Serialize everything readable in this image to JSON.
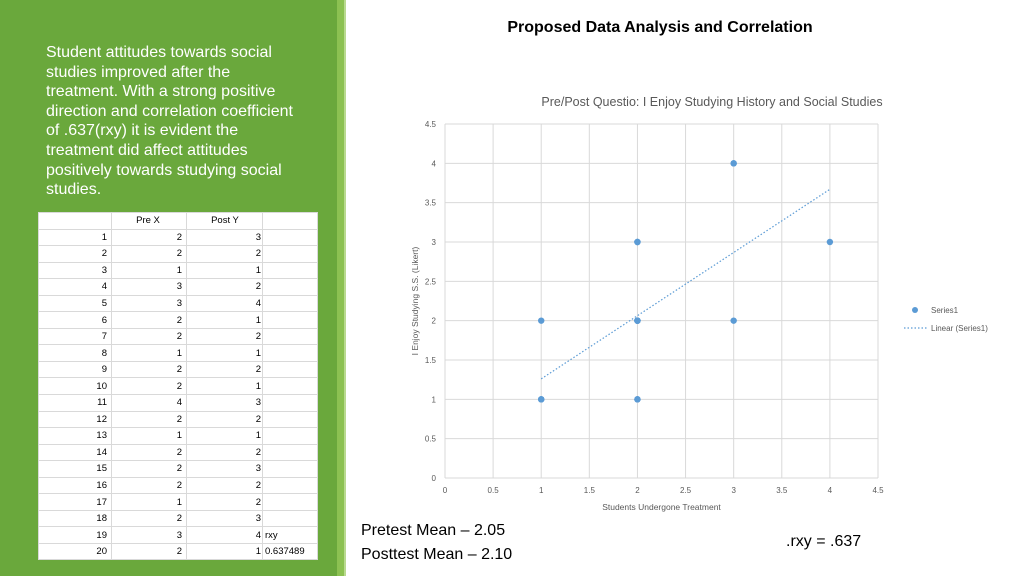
{
  "page_title": "Proposed Data Analysis and Correlation",
  "summary": "Student attitudes towards social studies improved after the treatment. With a strong positive direction and correlation coefficient of .637(rxy) it is evident the treatment did affect attitudes positively towards studying social studies.",
  "table": {
    "headers": [
      "",
      "Pre X",
      "Post Y",
      ""
    ],
    "rows": [
      [
        "1",
        "2",
        "3",
        ""
      ],
      [
        "2",
        "2",
        "2",
        ""
      ],
      [
        "3",
        "1",
        "1",
        ""
      ],
      [
        "4",
        "3",
        "2",
        ""
      ],
      [
        "5",
        "3",
        "4",
        ""
      ],
      [
        "6",
        "2",
        "1",
        ""
      ],
      [
        "7",
        "2",
        "2",
        ""
      ],
      [
        "8",
        "1",
        "1",
        ""
      ],
      [
        "9",
        "2",
        "2",
        ""
      ],
      [
        "10",
        "2",
        "1",
        ""
      ],
      [
        "11",
        "4",
        "3",
        ""
      ],
      [
        "12",
        "2",
        "2",
        ""
      ],
      [
        "13",
        "1",
        "1",
        ""
      ],
      [
        "14",
        "2",
        "2",
        ""
      ],
      [
        "15",
        "2",
        "3",
        ""
      ],
      [
        "16",
        "2",
        "2",
        ""
      ],
      [
        "17",
        "1",
        "2",
        ""
      ],
      [
        "18",
        "2",
        "3",
        ""
      ],
      [
        "19",
        "3",
        "4",
        "rxy"
      ],
      [
        "20",
        "2",
        "1",
        "0.637489"
      ]
    ]
  },
  "stats": {
    "pretest_mean": "Pretest Mean – 2.05",
    "posttest_mean": "Posttest Mean – 2.10",
    "rxy": ".rxy = .637"
  },
  "colors": {
    "panel": "#6aa83c",
    "point": "#5b9bd5"
  },
  "chart_data": {
    "type": "scatter",
    "title": "Pre/Post Questio: I Enjoy Studying History and Social Studies",
    "xlabel": "Students Undergone Treatment",
    "ylabel": "I Enjoy Studying S.S. (Likert)",
    "xlim": [
      0,
      4.5
    ],
    "ylim": [
      0,
      4.5
    ],
    "xticks": [
      "0",
      "0.5",
      "1",
      "1.5",
      "2",
      "2.5",
      "3",
      "3.5",
      "4",
      "4.5"
    ],
    "yticks": [
      "0",
      "0.5",
      "1",
      "1.5",
      "2",
      "2.5",
      "3",
      "3.5",
      "4",
      "4.5"
    ],
    "grid": true,
    "legend_position": "right",
    "series": [
      {
        "name": "Series1",
        "points": [
          [
            2,
            3
          ],
          [
            2,
            2
          ],
          [
            1,
            1
          ],
          [
            3,
            2
          ],
          [
            3,
            4
          ],
          [
            2,
            1
          ],
          [
            2,
            2
          ],
          [
            1,
            1
          ],
          [
            2,
            2
          ],
          [
            2,
            1
          ],
          [
            4,
            3
          ],
          [
            2,
            2
          ],
          [
            1,
            1
          ],
          [
            2,
            2
          ],
          [
            2,
            3
          ],
          [
            2,
            2
          ],
          [
            1,
            2
          ],
          [
            2,
            3
          ],
          [
            3,
            4
          ],
          [
            2,
            1
          ]
        ]
      }
    ],
    "trendline": {
      "name": "Linear (Series1)",
      "x": [
        1,
        4
      ],
      "y": [
        1.26,
        3.67
      ]
    }
  }
}
